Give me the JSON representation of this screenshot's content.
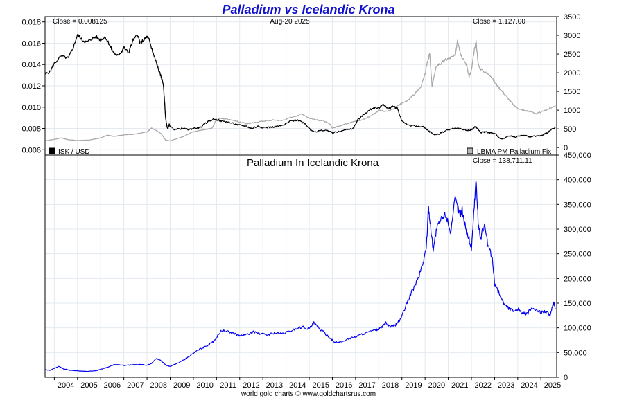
{
  "chart_title": "Palladium vs Icelandic Krona",
  "footer": "world gold charts © www.goldchartsrus.com",
  "colors": {
    "title": "#1010d0",
    "isk_line": "#000000",
    "palladium_line": "#a8a8a8",
    "krona_line": "#0000ee",
    "grid": "#e3e9ef",
    "frame": "#000000"
  },
  "chart_data": [
    {
      "type": "line",
      "panel": "top",
      "date_label": "Aug-20  2025",
      "left_close_label": "Close = 0.008125",
      "right_close_label": "Close = 1,127.00",
      "x_ticks": [
        "2004",
        "2005",
        "2006",
        "2007",
        "2008",
        "2009",
        "2010",
        "2011",
        "2012",
        "2013",
        "2014",
        "2015",
        "2016",
        "2017",
        "2018",
        "2019",
        "2020",
        "2021",
        "2022",
        "2023",
        "2024",
        "2025"
      ],
      "y_left_ticks": [
        "0.006",
        "0.008",
        "0.010",
        "0.012",
        "0.014",
        "0.016",
        "0.018"
      ],
      "y_left_range": [
        0.0055,
        0.0185
      ],
      "y_right_ticks": [
        "0",
        "500",
        "1000",
        "1500",
        "2000",
        "2500",
        "3000",
        "3500"
      ],
      "y_right_range": [
        -200,
        3500
      ],
      "grid": true,
      "series": [
        {
          "name": "ISK / USD",
          "axis": "left",
          "legend_position": "bottom-left",
          "x": [
            2003.6,
            2003.8,
            2004.0,
            2004.3,
            2004.6,
            2004.8,
            2005.0,
            2005.2,
            2005.4,
            2005.6,
            2005.8,
            2006.0,
            2006.2,
            2006.4,
            2006.5,
            2006.7,
            2006.9,
            2007.0,
            2007.2,
            2007.4,
            2007.6,
            2007.7,
            2007.9,
            2008.0,
            2008.1,
            2008.2,
            2008.3,
            2008.4,
            2008.5,
            2008.6,
            2008.7,
            2008.75,
            2008.8,
            2008.85,
            2008.9,
            2008.95,
            2009.0,
            2009.2,
            2009.5,
            2009.8,
            2010.0,
            2010.3,
            2010.6,
            2010.9,
            2011.2,
            2011.5,
            2011.8,
            2012.0,
            2012.3,
            2012.5,
            2012.8,
            2013.0,
            2013.3,
            2013.6,
            2013.9,
            2014.2,
            2014.5,
            2014.8,
            2015.1,
            2015.3,
            2015.5,
            2015.8,
            2016.0,
            2016.3,
            2016.6,
            2016.9,
            2017.1,
            2017.4,
            2017.6,
            2017.8,
            2018.0,
            2018.2,
            2018.4,
            2018.6,
            2018.8,
            2019.0,
            2019.3,
            2019.6,
            2019.9,
            2020.0,
            2020.2,
            2020.4,
            2020.6,
            2020.9,
            2021.2,
            2021.5,
            2021.8,
            2022.0,
            2022.2,
            2022.4,
            2022.6,
            2022.8,
            2023.0,
            2023.3,
            2023.6,
            2023.9,
            2024.2,
            2024.5,
            2024.8,
            2025.0,
            2025.2,
            2025.4,
            2025.63
          ],
          "y": [
            0.0131,
            0.0133,
            0.0141,
            0.0148,
            0.0146,
            0.0155,
            0.0168,
            0.0163,
            0.0161,
            0.0164,
            0.0166,
            0.0163,
            0.0166,
            0.0158,
            0.0153,
            0.0148,
            0.0152,
            0.0156,
            0.0151,
            0.0163,
            0.0168,
            0.016,
            0.0164,
            0.0166,
            0.0163,
            0.0155,
            0.0148,
            0.0142,
            0.0135,
            0.0129,
            0.0122,
            0.0108,
            0.009,
            0.0083,
            0.0079,
            0.0084,
            0.0082,
            0.0079,
            0.008,
            0.0079,
            0.008,
            0.0081,
            0.0086,
            0.0089,
            0.0087,
            0.0086,
            0.0084,
            0.0083,
            0.0082,
            0.008,
            0.0082,
            0.0081,
            0.0081,
            0.0082,
            0.0083,
            0.0087,
            0.0088,
            0.0085,
            0.0078,
            0.0077,
            0.0078,
            0.0078,
            0.0076,
            0.0077,
            0.0079,
            0.008,
            0.0088,
            0.0094,
            0.0097,
            0.01,
            0.0099,
            0.0103,
            0.0098,
            0.0101,
            0.0099,
            0.0087,
            0.0083,
            0.0082,
            0.0082,
            0.008,
            0.0077,
            0.0074,
            0.0075,
            0.0078,
            0.008,
            0.008,
            0.0078,
            0.0079,
            0.0082,
            0.0076,
            0.0077,
            0.0076,
            0.0075,
            0.007,
            0.0073,
            0.0072,
            0.0074,
            0.0072,
            0.0073,
            0.0073,
            0.0075,
            0.0078,
            0.0081
          ]
        },
        {
          "name": "LBMA PM Palladium Fix",
          "axis": "right",
          "legend_position": "bottom-right",
          "x": [
            2003.6,
            2004.0,
            2004.3,
            2004.6,
            2005.0,
            2005.5,
            2006.0,
            2006.3,
            2006.6,
            2007.0,
            2007.5,
            2008.0,
            2008.2,
            2008.4,
            2008.6,
            2008.8,
            2009.0,
            2009.3,
            2009.6,
            2009.9,
            2010.2,
            2010.5,
            2010.8,
            2011.0,
            2011.2,
            2011.5,
            2011.8,
            2012.0,
            2012.3,
            2012.6,
            2012.9,
            2013.2,
            2013.5,
            2013.8,
            2014.1,
            2014.4,
            2014.7,
            2015.0,
            2015.3,
            2015.6,
            2015.9,
            2016.0,
            2016.3,
            2016.6,
            2016.9,
            2017.2,
            2017.5,
            2017.8,
            2018.0,
            2018.3,
            2018.6,
            2018.9,
            2019.2,
            2019.5,
            2019.8,
            2020.0,
            2020.1,
            2020.2,
            2020.3,
            2020.5,
            2020.7,
            2020.9,
            2021.1,
            2021.3,
            2021.4,
            2021.5,
            2021.6,
            2021.8,
            2021.9,
            2022.0,
            2022.1,
            2022.2,
            2022.3,
            2022.4,
            2022.6,
            2022.8,
            2023.0,
            2023.2,
            2023.4,
            2023.6,
            2023.8,
            2024.0,
            2024.2,
            2024.4,
            2024.6,
            2024.8,
            2025.0,
            2025.2,
            2025.4,
            2025.63
          ],
          "y": [
            180,
            220,
            260,
            210,
            190,
            200,
            260,
            330,
            300,
            340,
            360,
            420,
            520,
            460,
            380,
            200,
            180,
            240,
            300,
            400,
            450,
            480,
            520,
            750,
            780,
            760,
            720,
            680,
            640,
            660,
            700,
            720,
            740,
            720,
            780,
            840,
            900,
            790,
            740,
            720,
            620,
            520,
            580,
            640,
            700,
            720,
            800,
            900,
            1000,
            960,
            1020,
            1150,
            1250,
            1400,
            1600,
            1950,
            2300,
            2500,
            1650,
            2200,
            2250,
            2350,
            2400,
            2450,
            2900,
            2600,
            2400,
            2200,
            1900,
            2050,
            2500,
            2850,
            2200,
            2100,
            2000,
            1950,
            1750,
            1600,
            1450,
            1300,
            1150,
            1050,
            1000,
            980,
            960,
            900,
            950,
            1000,
            1050,
            1127
          ]
        }
      ]
    },
    {
      "type": "line",
      "panel": "bottom",
      "title": "Palladium In Icelandic Krona",
      "close_label": "Close = 138,711.11",
      "x_ticks": [
        "2004",
        "2005",
        "2006",
        "2007",
        "2008",
        "2009",
        "2010",
        "2011",
        "2012",
        "2013",
        "2014",
        "2015",
        "2016",
        "2017",
        "2018",
        "2019",
        "2020",
        "2021",
        "2022",
        "2023",
        "2024",
        "2025"
      ],
      "y_right_ticks": [
        "0",
        "50,000",
        "100,000",
        "150,000",
        "200,000",
        "250,000",
        "300,000",
        "350,000",
        "400,000",
        "450,000"
      ],
      "y_range": [
        0,
        450000
      ],
      "grid": true,
      "series": [
        {
          "name": "Palladium In Icelandic Krona",
          "x": [
            2003.6,
            2003.8,
            2004.0,
            2004.2,
            2004.4,
            2004.7,
            2005.0,
            2005.4,
            2005.8,
            2006.0,
            2006.3,
            2006.6,
            2007.0,
            2007.4,
            2007.8,
            2008.0,
            2008.2,
            2008.4,
            2008.6,
            2008.8,
            2009.0,
            2009.3,
            2009.6,
            2009.9,
            2010.2,
            2010.5,
            2010.8,
            2011.0,
            2011.2,
            2011.5,
            2011.8,
            2012.0,
            2012.3,
            2012.6,
            2012.9,
            2013.2,
            2013.5,
            2013.8,
            2014.1,
            2014.4,
            2014.7,
            2015.0,
            2015.2,
            2015.4,
            2015.6,
            2015.9,
            2016.1,
            2016.4,
            2016.7,
            2017.0,
            2017.3,
            2017.6,
            2017.9,
            2018.1,
            2018.3,
            2018.5,
            2018.7,
            2018.9,
            2019.1,
            2019.3,
            2019.5,
            2019.7,
            2019.9,
            2020.05,
            2020.15,
            2020.25,
            2020.35,
            2020.5,
            2020.7,
            2020.9,
            2021.1,
            2021.3,
            2021.4,
            2021.5,
            2021.6,
            2021.75,
            2021.9,
            2022.0,
            2022.1,
            2022.2,
            2022.3,
            2022.4,
            2022.55,
            2022.7,
            2022.9,
            2023.0,
            2023.2,
            2023.4,
            2023.6,
            2023.8,
            2024.0,
            2024.2,
            2024.4,
            2024.6,
            2024.8,
            2025.0,
            2025.2,
            2025.4,
            2025.55,
            2025.63
          ],
          "y": [
            15000,
            14000,
            18000,
            22000,
            17000,
            14000,
            13000,
            12000,
            13000,
            16000,
            20000,
            26000,
            24000,
            25000,
            26000,
            24000,
            28000,
            38000,
            34000,
            25000,
            22000,
            28000,
            35000,
            45000,
            55000,
            62000,
            70000,
            80000,
            95000,
            92000,
            88000,
            84000,
            86000,
            92000,
            88000,
            86000,
            90000,
            88000,
            92000,
            98000,
            102000,
            98000,
            110000,
            100000,
            92000,
            80000,
            70000,
            72000,
            78000,
            82000,
            88000,
            92000,
            96000,
            100000,
            110000,
            102000,
            105000,
            115000,
            135000,
            160000,
            180000,
            200000,
            230000,
            260000,
            345000,
            300000,
            260000,
            300000,
            320000,
            330000,
            295000,
            360000,
            345000,
            330000,
            340000,
            300000,
            280000,
            260000,
            330000,
            400000,
            310000,
            280000,
            310000,
            270000,
            240000,
            190000,
            170000,
            150000,
            140000,
            135000,
            138000,
            130000,
            128000,
            140000,
            135000,
            132000,
            134000,
            125000,
            150000,
            138711
          ]
        }
      ]
    }
  ]
}
